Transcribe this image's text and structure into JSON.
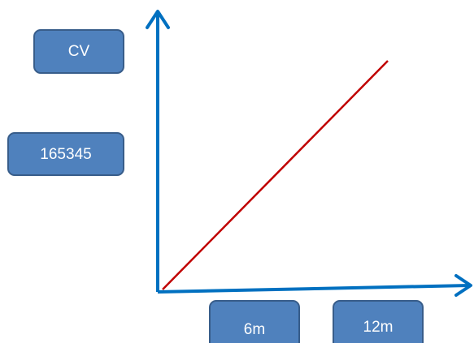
{
  "boxes": [
    {
      "text": "CV"
    },
    {
      "text": "165345"
    },
    {
      "text": "6m"
    },
    {
      "text": "12m"
    }
  ]
}
